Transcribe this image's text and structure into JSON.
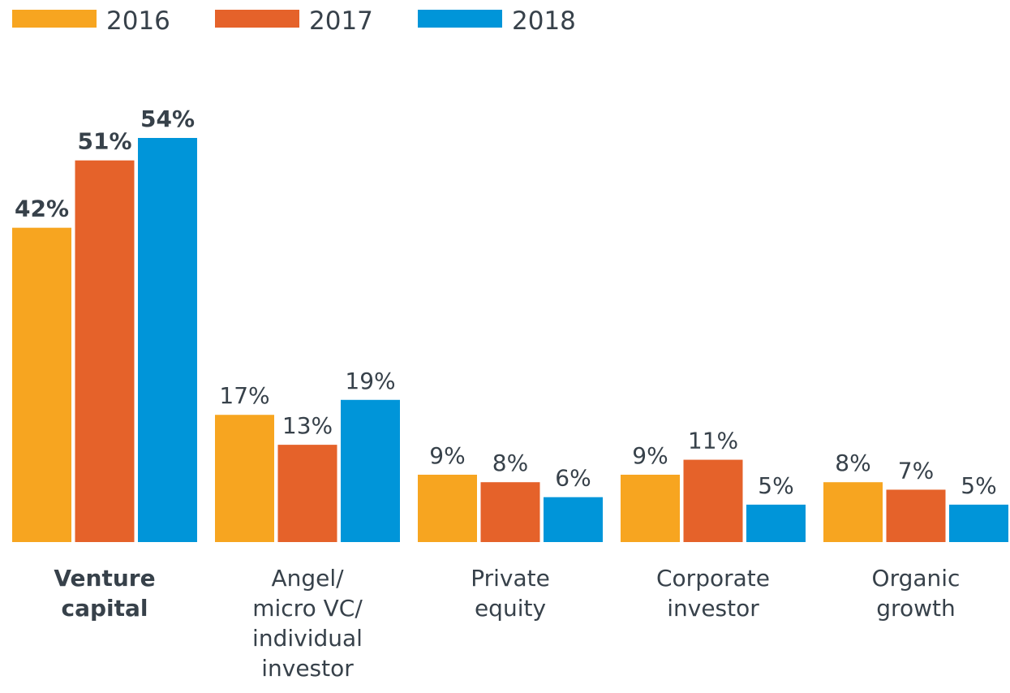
{
  "chart_data": {
    "type": "bar",
    "categories": [
      "Venture\ncapital",
      "Angel/\nmicro VC/\nindividual\ninvestor",
      "Private\nequity",
      "Corporate\ninvestor",
      "Organic\ngrowth"
    ],
    "series": [
      {
        "name": "2016",
        "color": "#f7a520",
        "values": [
          42,
          17,
          9,
          9,
          8
        ],
        "value_labels": [
          "42%",
          "17%",
          "9%",
          "9%",
          "8%"
        ]
      },
      {
        "name": "2017",
        "color": "#e5622a",
        "values": [
          51,
          13,
          8,
          11,
          7
        ],
        "value_labels": [
          "51%",
          "13%",
          "8%",
          "11%",
          "7%"
        ]
      },
      {
        "name": "2018",
        "color": "#0095d9",
        "values": [
          54,
          19,
          6,
          5,
          5
        ],
        "value_labels": [
          "54%",
          "19%",
          "6%",
          "5%",
          "5%"
        ]
      }
    ]
  }
}
